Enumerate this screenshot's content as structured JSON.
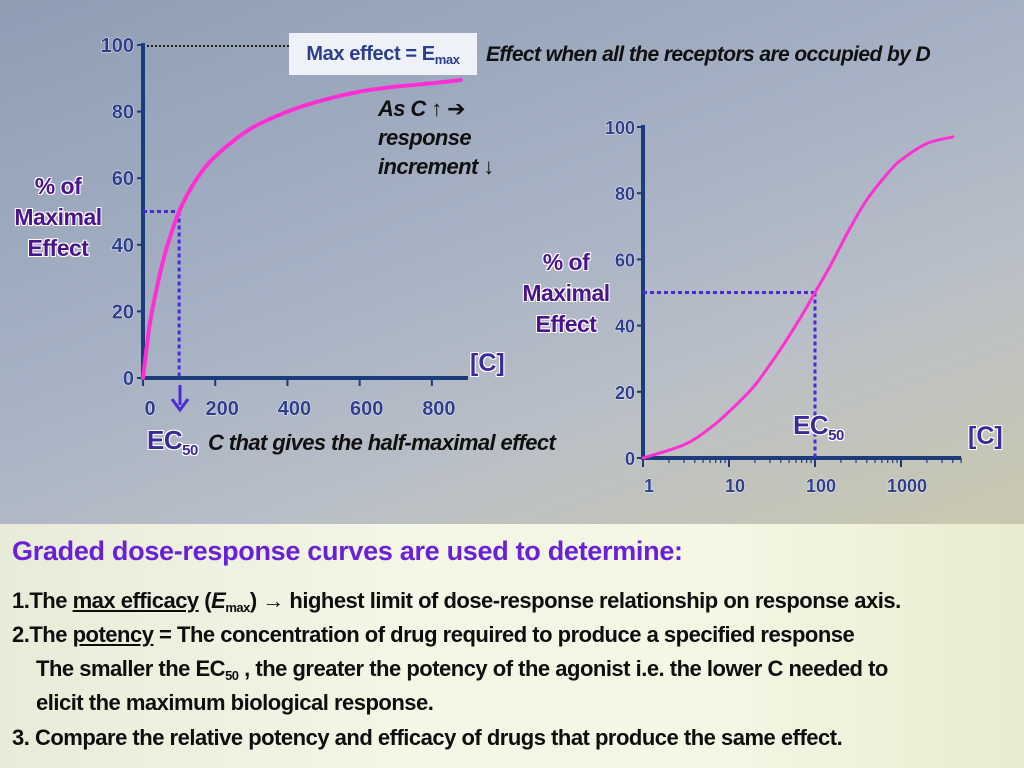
{
  "left_chart_text": {
    "max_effect_prefix": "Max effect = E",
    "max_effect_sub": "max",
    "receptors_note": "Effect when all the receptors are occupied by D",
    "as_c_line1": "As C ↑ ➔",
    "as_c_line2": "response",
    "as_c_line3": "increment ↓",
    "ylabel": "% of\nMaximal\nEffect",
    "xunit": "[C]",
    "ec_prefix": "EC",
    "ec_sub": "50",
    "ec_note": "C that gives the  half-maximal effect"
  },
  "right_chart_text": {
    "ylabel": "% of\nMaximal\nEffect",
    "xunit": "[C]",
    "ec_prefix": "EC",
    "ec_sub": "50"
  },
  "bottom": {
    "heading": "Graded dose-response curves are used to determine:",
    "item1_prefix": "1.The ",
    "item1_link": "max efficacy",
    "item1_paren_open": " (",
    "item1_e": "E",
    "item1_sub": "max",
    "item1_rest": ") → highest limit of dose-response relationship on response axis.",
    "item2_prefix": "2.The ",
    "item2_link": "potency",
    "item2_rest": " = The concentration of drug required to produce a specified response",
    "item2_line2_prefix": "The smaller the EC",
    "item2_line2_sub": "50",
    "item2_line2_rest": " , the greater the potency of the agonist i.e. the lower C needed to",
    "item2_line3": "elicit the maximum biological response.",
    "item3": "3. Compare the relative potency and efficacy of drugs that produce the same effect."
  },
  "colors": {
    "curve": "#ff2fd3",
    "axis": "#1c3b7a",
    "dotted": "#4b2bd6",
    "label_purple": "#4a148c",
    "heading": "#6a1fd8"
  },
  "chart_data": [
    {
      "type": "line",
      "xlabel": "[C]",
      "ylabel": "% of Maximal Effect",
      "xlim": [
        0,
        900
      ],
      "ylim": [
        0,
        100
      ],
      "xticks": [
        "0",
        "200",
        "400",
        "600",
        "800"
      ],
      "yticks": [
        "0",
        "20",
        "40",
        "60",
        "80",
        "100"
      ],
      "x": [
        0,
        10,
        20,
        40,
        60,
        80,
        100,
        130,
        170,
        220,
        300,
        400,
        500,
        600,
        700,
        800,
        880
      ],
      "y": [
        0,
        9,
        17,
        28,
        37,
        44,
        50,
        56.5,
        63,
        68.5,
        75,
        80,
        83.5,
        86,
        87.5,
        88.5,
        89.5
      ],
      "annotations": {
        "emax": 100,
        "ec50_x": 100,
        "ec50_y": 50
      }
    },
    {
      "type": "line",
      "xscale": "log",
      "xlabel": "[C]",
      "ylabel": "% of Maximal Effect",
      "xlim": [
        1,
        5000
      ],
      "ylim": [
        0,
        100
      ],
      "xticks": [
        "1",
        "10",
        "100",
        "1000"
      ],
      "yticks": [
        "0",
        "20",
        "40",
        "60",
        "80",
        "100"
      ],
      "x": [
        1,
        3,
        6,
        10,
        20,
        40,
        70,
        100,
        150,
        250,
        400,
        700,
        1000,
        2000,
        4000
      ],
      "y": [
        0,
        4,
        9,
        14,
        22,
        33,
        43,
        50,
        58,
        69,
        78,
        86,
        90,
        95,
        97
      ],
      "annotations": {
        "ec50_x": 100,
        "ec50_y": 50
      }
    }
  ]
}
